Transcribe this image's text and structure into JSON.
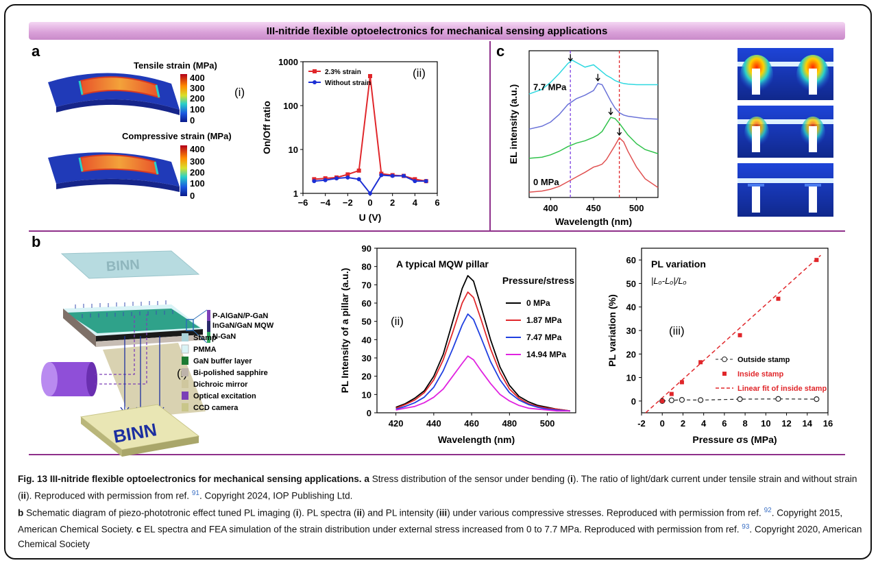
{
  "banner": {
    "title": "III-nitride flexible optoelectronics for mechanical sensing applications"
  },
  "panels": {
    "a": "a",
    "b": "b",
    "c": "c"
  },
  "panel_a": {
    "sim_tensile_title": "Tensile strain (MPa)",
    "sim_compressive_title": "Compressive strain (MPa)",
    "colorbar_ticks": [
      "400",
      "300",
      "200",
      "100",
      "0"
    ],
    "label_i": "(i)",
    "label_ii": "(ii)"
  },
  "panel_b": {
    "binn_text": "BINN",
    "layer_labels": [
      "P-AlGaN/P-GaN",
      "InGaN/GaN MQW",
      "N-GaN"
    ],
    "label_i": "(i)",
    "legend": [
      {
        "label": "Stamp",
        "color": "#a9d3da"
      },
      {
        "label": "PMMA",
        "color": "#d9f3f6"
      },
      {
        "label": "GaN buffer layer",
        "color": "#1c7b33"
      },
      {
        "label": "Bi-polished sapphire",
        "color": "#bdb3aa"
      },
      {
        "label": "Dichroic mirror",
        "color": "#cfc79e"
      },
      {
        "label": "Optical excitation",
        "color": "#7b3fb7"
      },
      {
        "label": "CCD camera",
        "color": "#c9c68a"
      }
    ]
  },
  "panel_c": {
    "label_high": "7.7 MPa",
    "label_low": "0 MPa"
  },
  "chart_data": [
    {
      "type": "line",
      "id": "a-ii",
      "title": "",
      "xlabel": "U (V)",
      "ylabel": "On/Off ratio",
      "yscale": "log",
      "xlim": [
        -6,
        6
      ],
      "ylim": [
        1,
        1000
      ],
      "xticks": [
        "−6",
        "−4",
        "−2",
        "0",
        "2",
        "4",
        "6"
      ],
      "yticks": [
        "1",
        "10",
        "100",
        "1000"
      ],
      "legend_position": "top-left",
      "series": [
        {
          "name": "2.3% strain",
          "color": "#e0262a",
          "x": [
            -5,
            -4,
            -3,
            -2,
            -1,
            0,
            1,
            2,
            3,
            4,
            5
          ],
          "y": [
            2.1,
            2.2,
            2.3,
            2.7,
            3.3,
            470,
            2.8,
            2.6,
            2.5,
            2.1,
            1.9
          ]
        },
        {
          "name": "Without strain",
          "color": "#1c2fd4",
          "x": [
            -5,
            -4,
            -3,
            -2,
            -1,
            0,
            1,
            2,
            3,
            4,
            5
          ],
          "y": [
            1.9,
            2.0,
            2.2,
            2.3,
            2.1,
            1.0,
            2.6,
            2.5,
            2.5,
            1.9,
            1.9
          ]
        }
      ]
    },
    {
      "type": "line",
      "id": "b-ii",
      "title": "A typical MQW pillar",
      "xlabel": "Wavelength (nm)",
      "ylabel": "PL Intensity of a pillar (a.u.)",
      "legend_title": "Pressure/stress",
      "panel_label": "(ii)",
      "xlim": [
        410,
        515
      ],
      "ylim": [
        0,
        90
      ],
      "xticks": [
        "420",
        "440",
        "460",
        "480",
        "500"
      ],
      "yticks": [
        "0",
        "10",
        "20",
        "30",
        "40",
        "50",
        "60",
        "70",
        "80",
        "90"
      ],
      "legend_position": "right",
      "series": [
        {
          "name": "0 MPa",
          "color": "#000000",
          "x": [
            420,
            425,
            430,
            435,
            440,
            445,
            450,
            455,
            458,
            461,
            465,
            470,
            475,
            480,
            485,
            490,
            495,
            500,
            505,
            512
          ],
          "y": [
            3,
            5,
            8,
            12,
            20,
            32,
            50,
            68,
            75,
            72,
            58,
            40,
            25,
            15,
            9,
            6,
            4,
            3,
            2,
            1
          ]
        },
        {
          "name": "1.87 MPa",
          "color": "#e0262a",
          "x": [
            420,
            425,
            430,
            435,
            440,
            445,
            450,
            455,
            458,
            461,
            465,
            470,
            475,
            480,
            485,
            490,
            495,
            500,
            505,
            512
          ],
          "y": [
            2.5,
            4.5,
            7,
            11,
            18,
            29,
            44,
            60,
            66,
            63,
            51,
            35,
            22,
            13,
            8,
            5,
            3.5,
            2.5,
            2,
            1
          ]
        },
        {
          "name": "7.47 MPa",
          "color": "#1f3fe0",
          "x": [
            420,
            425,
            430,
            435,
            440,
            445,
            450,
            455,
            458,
            461,
            465,
            470,
            475,
            480,
            485,
            490,
            495,
            500,
            505,
            512
          ],
          "y": [
            2,
            3.5,
            5.5,
            8.5,
            14,
            23,
            35,
            48,
            54,
            51,
            41,
            28,
            18,
            11,
            7,
            4.5,
            3,
            2,
            1.5,
            1
          ]
        },
        {
          "name": "14.94 MPa",
          "color": "#e022e0",
          "x": [
            420,
            425,
            430,
            435,
            440,
            445,
            450,
            455,
            458,
            461,
            465,
            470,
            475,
            480,
            485,
            490,
            495,
            500,
            505,
            512
          ],
          "y": [
            1.5,
            2.5,
            3.5,
            5.5,
            8.5,
            13,
            20,
            27,
            31,
            29,
            23,
            16,
            10,
            6.5,
            4,
            2.5,
            2,
            1.5,
            1,
            1
          ]
        }
      ]
    },
    {
      "type": "scatter",
      "id": "b-iii",
      "title": "PL variation",
      "formula": "|Lₒ-Lₒ|/Lₒ",
      "panel_label": "(iii)",
      "xlabel": "Pressure σs (MPa)",
      "ylabel": "PL variation (%)",
      "xlim": [
        -2,
        16
      ],
      "ylim": [
        -5,
        65
      ],
      "xticks": [
        "-2",
        "0",
        "2",
        "4",
        "6",
        "8",
        "10",
        "12",
        "14",
        "16"
      ],
      "yticks": [
        "0",
        "10",
        "20",
        "30",
        "40",
        "50",
        "60"
      ],
      "legend_position": "bottom-right",
      "series": [
        {
          "name": "Outside stamp",
          "color": "#222222",
          "marker": "open-circle",
          "line": "dashed",
          "x": [
            0,
            0.9,
            1.9,
            3.7,
            7.5,
            11.2,
            14.9
          ],
          "y": [
            0,
            0.3,
            0.5,
            0.4,
            0.8,
            0.9,
            0.8
          ]
        },
        {
          "name": "Inside stamp",
          "color": "#e0262a",
          "marker": "square",
          "x": [
            0,
            0.9,
            1.9,
            3.7,
            7.5,
            11.2,
            14.9
          ],
          "y": [
            0,
            3,
            8,
            16.5,
            28,
            43.5,
            60
          ]
        },
        {
          "name": "Linear fit of inside stamp",
          "color": "#e0262a",
          "line": "dashed",
          "x": [
            -1.6,
            15.3
          ],
          "y": [
            -5,
            62
          ]
        }
      ]
    },
    {
      "type": "line",
      "id": "c-el",
      "title": "",
      "xlabel": "Wavelength (nm)",
      "ylabel": "EL intensity (a.u.)",
      "xlim": [
        375,
        525
      ],
      "xticks": [
        "400",
        "450",
        "500"
      ],
      "series": [
        {
          "name": "0 MPa",
          "color": "#e05050",
          "x": [
            375,
            390,
            400,
            410,
            420,
            430,
            440,
            450,
            455,
            460,
            465,
            470,
            475,
            480,
            485,
            490,
            500,
            510,
            525
          ],
          "y": [
            0.02,
            0.04,
            0.07,
            0.12,
            0.2,
            0.28,
            0.36,
            0.45,
            0.47,
            0.5,
            0.58,
            0.7,
            0.82,
            0.95,
            0.88,
            0.72,
            0.45,
            0.25,
            0.1
          ]
        },
        {
          "name": "",
          "color": "#2fc24a",
          "x": [
            375,
            390,
            400,
            410,
            420,
            430,
            440,
            450,
            455,
            460,
            465,
            470,
            475,
            480,
            485,
            490,
            500,
            510,
            525
          ],
          "y": [
            0.6,
            0.62,
            0.66,
            0.72,
            0.8,
            0.86,
            0.9,
            0.96,
            1.0,
            1.06,
            1.18,
            1.3,
            1.28,
            1.2,
            1.1,
            1.0,
            0.85,
            0.75,
            0.68
          ]
        },
        {
          "name": "",
          "color": "#6a72d8",
          "x": [
            375,
            390,
            400,
            410,
            420,
            430,
            440,
            450,
            455,
            460,
            465,
            470,
            475,
            480,
            485,
            490,
            500,
            510,
            525
          ],
          "y": [
            1.1,
            1.15,
            1.22,
            1.35,
            1.52,
            1.62,
            1.68,
            1.76,
            1.88,
            1.86,
            1.72,
            1.58,
            1.46,
            1.38,
            1.34,
            1.32,
            1.3,
            1.28,
            1.27
          ]
        },
        {
          "name": "7.7 MPa",
          "color": "#2ed8e0",
          "x": [
            375,
            390,
            400,
            410,
            420,
            425,
            430,
            440,
            450,
            455,
            460,
            465,
            470,
            475,
            480,
            485,
            490,
            500,
            510,
            525
          ],
          "y": [
            1.7,
            1.78,
            1.9,
            2.05,
            2.22,
            2.28,
            2.24,
            2.16,
            2.2,
            2.14,
            2.08,
            2.02,
            1.98,
            1.93,
            1.9,
            1.88,
            1.87,
            1.86,
            1.86,
            1.86
          ]
        }
      ],
      "vlines": [
        {
          "x": 423,
          "color": "#7b3fe0"
        },
        {
          "x": 480,
          "color": "#e0262a"
        }
      ],
      "peak_arrows": [
        {
          "x": 423,
          "series": 3
        },
        {
          "x": 455,
          "series": 2
        },
        {
          "x": 470,
          "series": 1
        },
        {
          "x": 480,
          "series": 0
        }
      ]
    }
  ],
  "caption": {
    "fig_label": "Fig. 13",
    "fig_title": "III-nitride flexible optoelectronics for mechanical sensing applications.",
    "a_letter": "a",
    "a_text": "Stress distribution of the sensor under bending (",
    "a_i": "i",
    "a_text2": "). The ratio of light/dark current under tensile strain and without strain (",
    "a_ii": "ii",
    "a_text3": "). Reproduced with permission from ref. ",
    "a_ref": "91",
    "a_text4": ". Copyright 2024, IOP Publishing Ltd.",
    "b_letter": "b",
    "b_text": "Schematic diagram of piezo-phototronic effect tuned PL imaging (",
    "b_i": "i",
    "b_text2": "). PL spectra (",
    "b_ii": "ii",
    "b_text3": ") and PL intensity (",
    "b_iii": "iii",
    "b_text4": ") under various compressive stresses. Reproduced with permission from ref. ",
    "b_ref": "92",
    "b_text5": ". Copyright 2015, American Chemical Society.",
    "c_letter": "c",
    "c_text": "EL spectra and FEA simulation of the strain distribution under external stress increased from 0 to 7.7 MPa. Reproduced with permission from ref. ",
    "c_ref": "93",
    "c_text2": ". Copyright 2020, American Chemical Society"
  }
}
